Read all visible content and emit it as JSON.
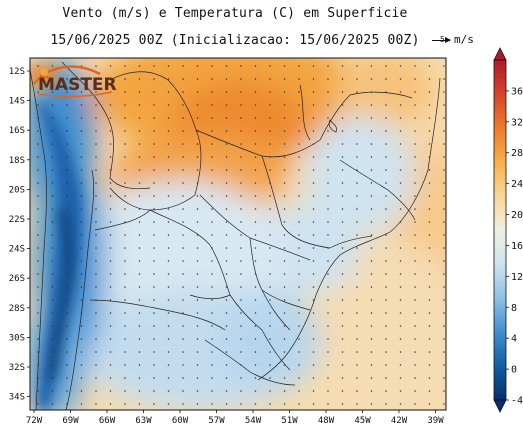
{
  "title_line1": "Vento (m/s) e Temperatura (C) em Superficie",
  "title_line2": "15/06/2025 00Z (Inicializacao: 15/06/2025 00Z)",
  "wind_reference": {
    "value": "5",
    "unit": "m/s"
  },
  "logo_text": "MASTER",
  "lat_ticks": [
    "12S",
    "14S",
    "16S",
    "18S",
    "20S",
    "22S",
    "24S",
    "26S",
    "28S",
    "30S",
    "32S",
    "34S"
  ],
  "lon_ticks": [
    "72W",
    "69W",
    "66W",
    "63W",
    "60W",
    "57W",
    "54W",
    "51W",
    "48W",
    "45W",
    "42W",
    "39W"
  ],
  "colorbar": {
    "min": -4,
    "max": 40,
    "ticks": [
      "36",
      "32",
      "28",
      "24",
      "20",
      "16",
      "12",
      "8",
      "4",
      "0",
      "-4"
    ],
    "colors": [
      "#b2182b",
      "#d6452b",
      "#ee7b2b",
      "#f7b04d",
      "#f9d696",
      "#eef0e0",
      "#cfe3f0",
      "#8fc0e4",
      "#3f8fd0",
      "#125ea3",
      "#08306b"
    ]
  }
}
